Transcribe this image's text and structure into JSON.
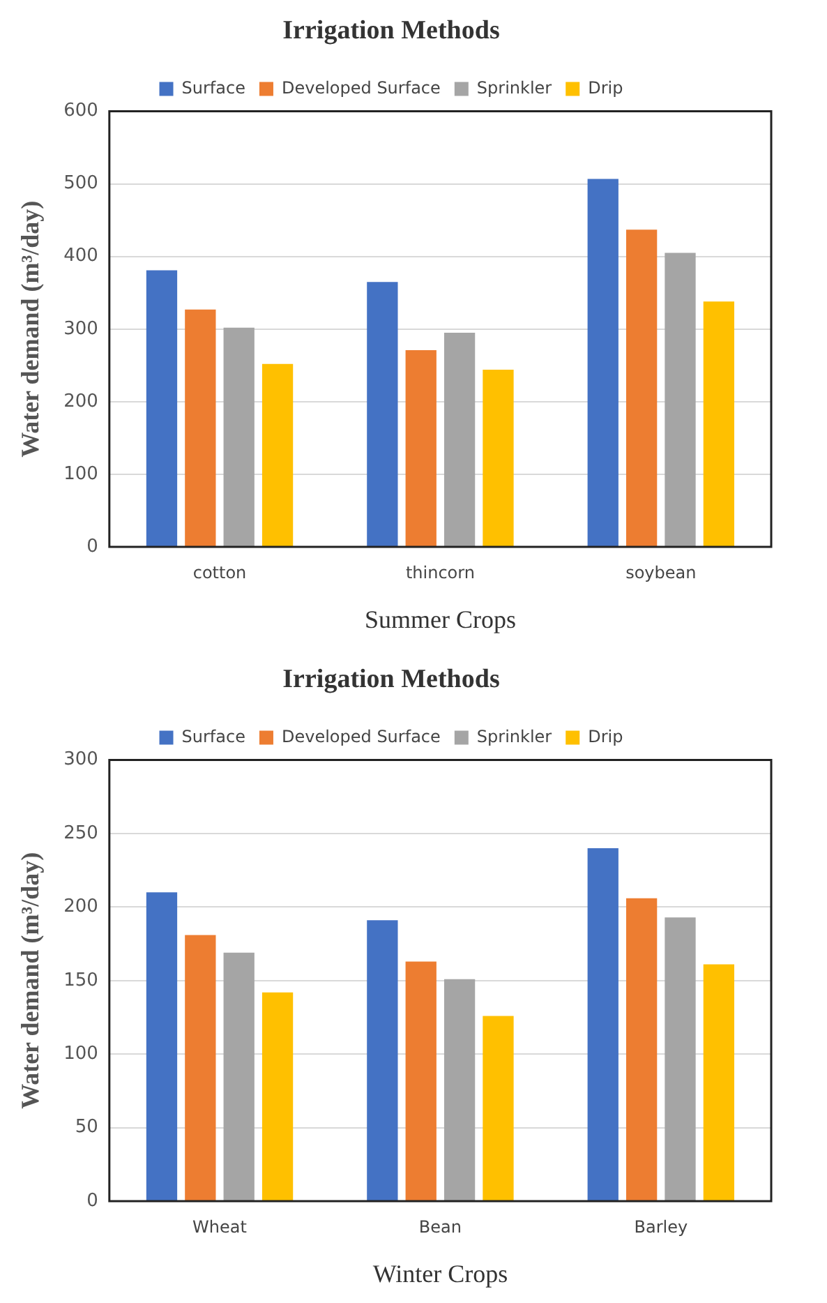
{
  "chart_data": [
    {
      "type": "bar",
      "title": "Irrigation Methods",
      "xlabel": "Summer Crops",
      "ylabel": "Water demand (m³/day)",
      "categories": [
        "cotton",
        "thincorn",
        "soybean"
      ],
      "series": [
        {
          "name": "Surface",
          "color": "#4472c4",
          "values": [
            381,
            365,
            507
          ]
        },
        {
          "name": "Developed Surface",
          "color": "#ed7d31",
          "values": [
            327,
            271,
            437
          ]
        },
        {
          "name": "Sprinkler",
          "color": "#a5a5a5",
          "values": [
            302,
            295,
            405
          ]
        },
        {
          "name": "Drip",
          "color": "#ffc000",
          "values": [
            252,
            244,
            338
          ]
        }
      ],
      "ylim": [
        0,
        600
      ],
      "yticks": [
        0,
        100,
        200,
        300,
        400,
        500,
        600
      ],
      "grid": "y",
      "legend": "top"
    },
    {
      "type": "bar",
      "title": "Irrigation Methods",
      "xlabel": "Winter Crops",
      "ylabel": "Water demand (m³/day)",
      "categories": [
        "Wheat",
        "Bean",
        "Barley"
      ],
      "series": [
        {
          "name": "Surface",
          "color": "#4472c4",
          "values": [
            210,
            191,
            240
          ]
        },
        {
          "name": "Developed Surface",
          "color": "#ed7d31",
          "values": [
            181,
            163,
            206
          ]
        },
        {
          "name": "Sprinkler",
          "color": "#a5a5a5",
          "values": [
            169,
            151,
            193
          ]
        },
        {
          "name": "Drip",
          "color": "#ffc000",
          "values": [
            142,
            126,
            161
          ]
        }
      ],
      "ylim": [
        0,
        300
      ],
      "yticks": [
        0,
        50,
        100,
        150,
        200,
        250,
        300
      ],
      "grid": "y",
      "legend": "top"
    }
  ]
}
